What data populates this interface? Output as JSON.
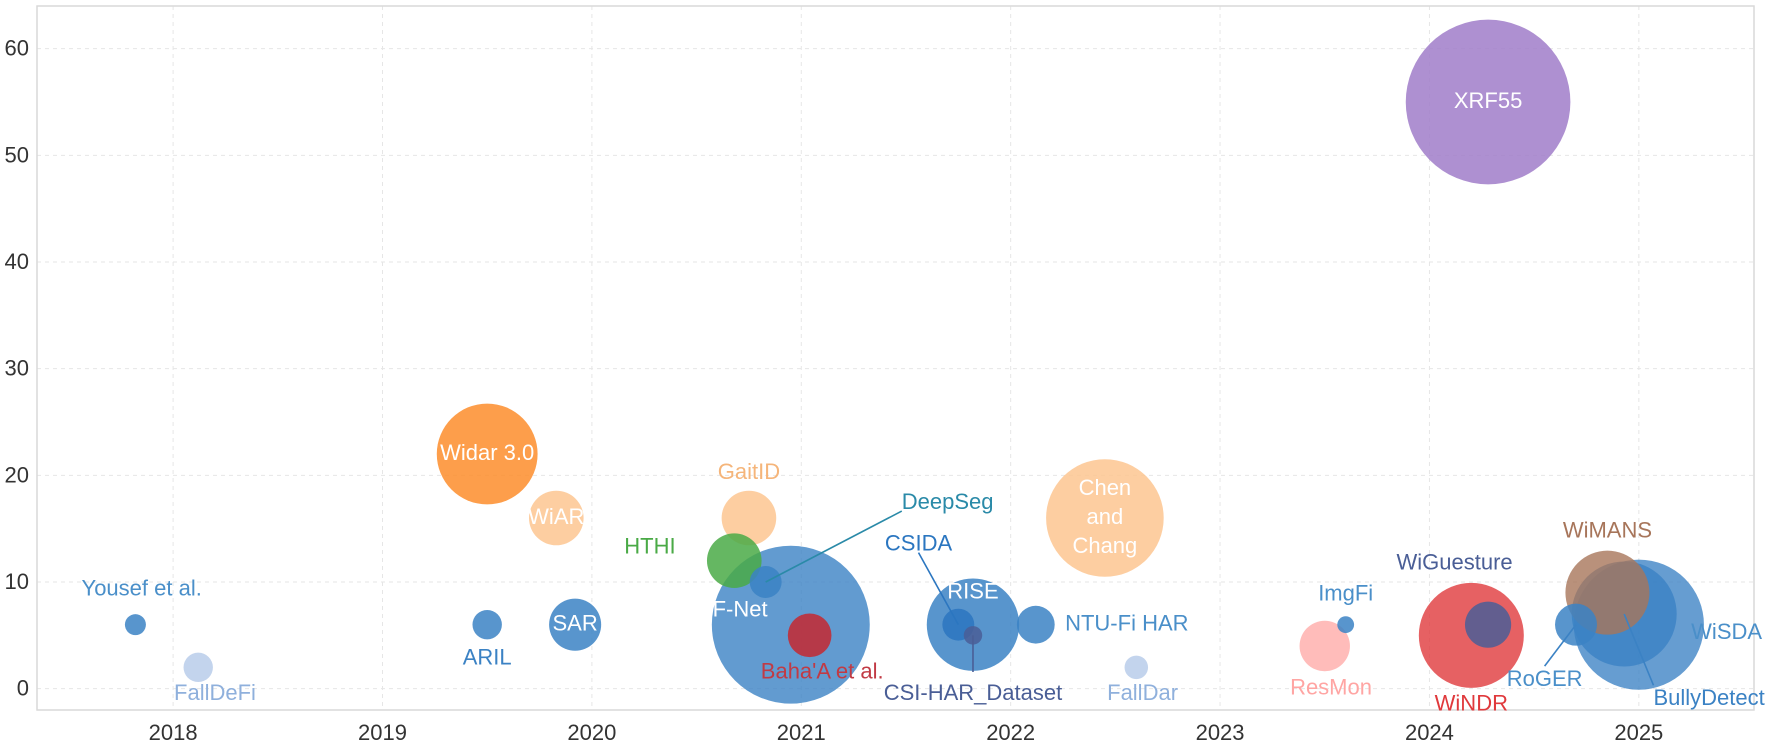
{
  "chart_data": {
    "type": "scatter",
    "title": "",
    "xlabel": "",
    "ylabel": "",
    "xlim": [
      2017.35,
      2025.55
    ],
    "ylim": [
      -2,
      64
    ],
    "grid": true,
    "x_ticks": [
      {
        "value": 2018,
        "label": "2018"
      },
      {
        "value": 2019,
        "label": "2019"
      },
      {
        "value": 2020,
        "label": "2020"
      },
      {
        "value": 2021,
        "label": "2021"
      },
      {
        "value": 2022,
        "label": "2022"
      },
      {
        "value": 2023,
        "label": "2023"
      },
      {
        "value": 2024,
        "label": "2024"
      },
      {
        "value": 2025,
        "label": "2025"
      }
    ],
    "y_ticks": [
      {
        "value": 0,
        "label": "0"
      },
      {
        "value": 10,
        "label": "10"
      },
      {
        "value": 20,
        "label": "20"
      },
      {
        "value": 30,
        "label": "30"
      },
      {
        "value": 40,
        "label": "40"
      },
      {
        "value": 50,
        "label": "50"
      },
      {
        "value": 60,
        "label": "60"
      }
    ],
    "points": [
      {
        "name": "Yousef et al.",
        "x": 2017.82,
        "y": 6,
        "size": 0.25,
        "color": "#3b82c4",
        "opacity": 0.85,
        "label_pos": "above",
        "label_color": "#4a8fc9",
        "label_x": 2017.85,
        "label_y": 9.3
      },
      {
        "name": "FallDeFi",
        "x": 2018.12,
        "y": 2,
        "size": 0.35,
        "color": "#b9cdea",
        "opacity": 0.85,
        "label_pos": "below",
        "label_color": "#8fb0dc",
        "label_x": 2018.2,
        "label_y": -0.5
      },
      {
        "name": "ARIL",
        "x": 2019.5,
        "y": 6,
        "size": 0.35,
        "color": "#3b82c4",
        "opacity": 0.85,
        "label_pos": "below",
        "label_color": "#3b82c4",
        "label_x": 2019.5,
        "label_y": 2.8
      },
      {
        "name": "Widar 3.0",
        "x": 2019.5,
        "y": 22,
        "size": 1.2,
        "color": "#fd8d2c",
        "opacity": 0.85,
        "label_pos": "center",
        "label_color": "#ffffff",
        "label_x": 2019.5,
        "label_y": 22
      },
      {
        "name": "WiAR",
        "x": 2019.83,
        "y": 16,
        "size": 0.65,
        "color": "#fdc590",
        "opacity": 0.85,
        "label_pos": "center",
        "label_color": "#ffffff",
        "label_x": 2019.83,
        "label_y": 16
      },
      {
        "name": "SAR",
        "x": 2019.92,
        "y": 6,
        "size": 0.62,
        "color": "#3b82c4",
        "opacity": 0.85,
        "label_pos": "center",
        "label_color": "#ffffff",
        "label_x": 2019.92,
        "label_y": 6
      },
      {
        "name": "GaitID",
        "x": 2020.75,
        "y": 16,
        "size": 0.65,
        "color": "#fdc590",
        "opacity": 0.85,
        "label_pos": "above",
        "label_color": "#f5b57a",
        "label_x": 2020.75,
        "label_y": 20.2
      },
      {
        "name": "HTHI",
        "x": 2020.68,
        "y": 12,
        "size": 0.65,
        "color": "#4aaa46",
        "opacity": 0.85,
        "label_pos": "left",
        "label_color": "#4aaa46",
        "label_x": 2020.4,
        "label_y": 13.2
      },
      {
        "name": "DeepSeg",
        "x": 2020.83,
        "y": 10,
        "size": 0.38,
        "color": "#3b82c4",
        "opacity": 0.85,
        "label_pos": "callout",
        "label_color": "#2a8aa8",
        "label_x": 2021.48,
        "label_y": 17.4,
        "line_color": "#2a8aa8"
      },
      {
        "name": "RF-Net",
        "x": 2020.95,
        "y": 6,
        "size": 1.88,
        "color": "#3b82c4",
        "opacity": 0.8,
        "label_pos": "inside",
        "label_color": "#ffffff",
        "label_x": 2020.67,
        "label_y": 7.3
      },
      {
        "name": "Baha'A et al.",
        "x": 2021.04,
        "y": 5,
        "size": 0.52,
        "color": "#c52830",
        "opacity": 0.85,
        "label_pos": "below",
        "label_color": "#c13a44",
        "label_x": 2021.1,
        "label_y": 1.5
      },
      {
        "name": "CSIDA",
        "x": 2021.75,
        "y": 6,
        "size": 0.38,
        "color": "#2b76c0",
        "opacity": 0.85,
        "label_pos": "callout",
        "label_color": "#2b76c0",
        "label_x": 2021.56,
        "label_y": 13.5,
        "line_color": "#2b76c0"
      },
      {
        "name": "RISE",
        "x": 2021.82,
        "y": 6,
        "size": 1.1,
        "color": "#3b82c4",
        "opacity": 0.85,
        "label_pos": "inside",
        "label_color": "#ffffff",
        "label_x": 2021.82,
        "label_y": 9
      },
      {
        "name": "CSI-HAR_Dataset",
        "x": 2021.82,
        "y": 5,
        "size": 0.22,
        "color": "#4a5e96",
        "opacity": 0.85,
        "label_pos": "callout-below",
        "label_color": "#4a5e96",
        "label_x": 2021.82,
        "label_y": -0.5,
        "line_color": "#4a5e96"
      },
      {
        "name": "NTU-Fi HAR",
        "x": 2022.12,
        "y": 6,
        "size": 0.45,
        "color": "#3b82c4",
        "opacity": 0.85,
        "label_pos": "right",
        "label_color": "#4a8fc9",
        "label_x": 2022.26,
        "label_y": 6
      },
      {
        "name": "Chen and Chang",
        "x": 2022.45,
        "y": 16,
        "size": 1.4,
        "color": "#fdc590",
        "opacity": 0.85,
        "label_pos": "center-multiline",
        "label_color": "#ffffff",
        "label_x": 2022.45,
        "label_y": 16
      },
      {
        "name": "FallDar",
        "x": 2022.6,
        "y": 2,
        "size": 0.28,
        "color": "#b9cdea",
        "opacity": 0.85,
        "label_pos": "below",
        "label_color": "#8fb0dc",
        "label_x": 2022.63,
        "label_y": -0.5
      },
      {
        "name": "ResMon",
        "x": 2023.5,
        "y": 4,
        "size": 0.6,
        "color": "#ffb0ae",
        "opacity": 0.85,
        "label_pos": "below",
        "label_color": "#ffa5a3",
        "label_x": 2023.53,
        "label_y": 0
      },
      {
        "name": "ImgFi",
        "x": 2023.6,
        "y": 6,
        "size": 0.2,
        "color": "#3b82c4",
        "opacity": 0.85,
        "label_pos": "above",
        "label_color": "#4a8fc9",
        "label_x": 2023.6,
        "label_y": 8.8
      },
      {
        "name": "WiNDR",
        "x": 2024.2,
        "y": 5,
        "size": 1.25,
        "color": "#e0393c",
        "opacity": 0.8,
        "label_pos": "below",
        "label_color": "#e0393c",
        "label_x": 2024.2,
        "label_y": -1.5
      },
      {
        "name": "WiGuesture",
        "x": 2024.28,
        "y": 6,
        "size": 0.55,
        "color": "#4a5e96",
        "opacity": 0.85,
        "label_pos": "above",
        "label_color": "#4a5e96",
        "label_x": 2024.12,
        "label_y": 11.7
      },
      {
        "name": "XRF55",
        "x": 2024.28,
        "y": 55,
        "size": 1.96,
        "color": "#a07cc9",
        "opacity": 0.85,
        "label_pos": "center",
        "label_color": "#ffffff",
        "label_x": 2024.28,
        "label_y": 55
      },
      {
        "name": "RoGER",
        "x": 2024.7,
        "y": 6,
        "size": 0.5,
        "color": "#3b82c4",
        "opacity": 0.85,
        "label_pos": "callout",
        "label_color": "#4a8fc9",
        "label_x": 2024.55,
        "label_y": 0.8,
        "line_color": "#3b82c4"
      },
      {
        "name": "WiMANS",
        "x": 2024.85,
        "y": 9,
        "size": 1.0,
        "color": "#a7755a",
        "opacity": 0.8,
        "label_pos": "above",
        "label_color": "#a7755a",
        "label_x": 2024.85,
        "label_y": 14.7
      },
      {
        "name": "BullyDetect",
        "x": 2024.93,
        "y": 7,
        "size": 1.25,
        "color": "#3b82c4",
        "opacity": 0.8,
        "label_pos": "callout",
        "label_color": "#3b82c4",
        "label_x": 2025.07,
        "label_y": -1.0,
        "line_color": "#3b82c4"
      },
      {
        "name": "WiSDA",
        "x": 2025.0,
        "y": 6,
        "size": 1.55,
        "color": "#3b82c4",
        "opacity": 0.78,
        "label_pos": "right",
        "label_color": "#4a8fc9",
        "label_x": 2025.25,
        "label_y": 5.2
      }
    ]
  }
}
